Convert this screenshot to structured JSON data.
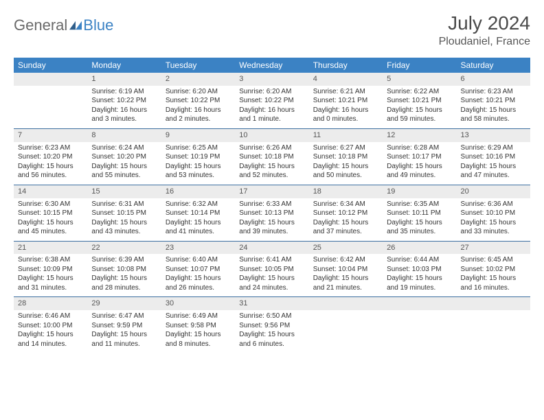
{
  "brand": {
    "part1": "General",
    "part2": "Blue"
  },
  "title": {
    "month_year": "July 2024",
    "location": "Ploudaniel, France"
  },
  "colors": {
    "header_bg": "#3b82c4",
    "header_fg": "#ffffff",
    "daynum_bg": "#ececec",
    "daynum_fg": "#555555",
    "cell_fg": "#333333",
    "divider": "#3b6ea0",
    "logo_gray": "#6a6a6a",
    "logo_blue": "#3b82c4",
    "page_bg": "#ffffff"
  },
  "typography": {
    "month_year_size": 28,
    "location_size": 16,
    "weekday_size": 12,
    "daynum_size": 11,
    "cell_size": 10,
    "logo_size": 22
  },
  "weekdays": [
    "Sunday",
    "Monday",
    "Tuesday",
    "Wednesday",
    "Thursday",
    "Friday",
    "Saturday"
  ],
  "blank_before": 1,
  "days": [
    {
      "n": "1",
      "sunrise": "6:19 AM",
      "sunset": "10:22 PM",
      "dl1": "Daylight: 16 hours",
      "dl2": "and 3 minutes."
    },
    {
      "n": "2",
      "sunrise": "6:20 AM",
      "sunset": "10:22 PM",
      "dl1": "Daylight: 16 hours",
      "dl2": "and 2 minutes."
    },
    {
      "n": "3",
      "sunrise": "6:20 AM",
      "sunset": "10:22 PM",
      "dl1": "Daylight: 16 hours",
      "dl2": "and 1 minute."
    },
    {
      "n": "4",
      "sunrise": "6:21 AM",
      "sunset": "10:21 PM",
      "dl1": "Daylight: 16 hours",
      "dl2": "and 0 minutes."
    },
    {
      "n": "5",
      "sunrise": "6:22 AM",
      "sunset": "10:21 PM",
      "dl1": "Daylight: 15 hours",
      "dl2": "and 59 minutes."
    },
    {
      "n": "6",
      "sunrise": "6:23 AM",
      "sunset": "10:21 PM",
      "dl1": "Daylight: 15 hours",
      "dl2": "and 58 minutes."
    },
    {
      "n": "7",
      "sunrise": "6:23 AM",
      "sunset": "10:20 PM",
      "dl1": "Daylight: 15 hours",
      "dl2": "and 56 minutes."
    },
    {
      "n": "8",
      "sunrise": "6:24 AM",
      "sunset": "10:20 PM",
      "dl1": "Daylight: 15 hours",
      "dl2": "and 55 minutes."
    },
    {
      "n": "9",
      "sunrise": "6:25 AM",
      "sunset": "10:19 PM",
      "dl1": "Daylight: 15 hours",
      "dl2": "and 53 minutes."
    },
    {
      "n": "10",
      "sunrise": "6:26 AM",
      "sunset": "10:18 PM",
      "dl1": "Daylight: 15 hours",
      "dl2": "and 52 minutes."
    },
    {
      "n": "11",
      "sunrise": "6:27 AM",
      "sunset": "10:18 PM",
      "dl1": "Daylight: 15 hours",
      "dl2": "and 50 minutes."
    },
    {
      "n": "12",
      "sunrise": "6:28 AM",
      "sunset": "10:17 PM",
      "dl1": "Daylight: 15 hours",
      "dl2": "and 49 minutes."
    },
    {
      "n": "13",
      "sunrise": "6:29 AM",
      "sunset": "10:16 PM",
      "dl1": "Daylight: 15 hours",
      "dl2": "and 47 minutes."
    },
    {
      "n": "14",
      "sunrise": "6:30 AM",
      "sunset": "10:15 PM",
      "dl1": "Daylight: 15 hours",
      "dl2": "and 45 minutes."
    },
    {
      "n": "15",
      "sunrise": "6:31 AM",
      "sunset": "10:15 PM",
      "dl1": "Daylight: 15 hours",
      "dl2": "and 43 minutes."
    },
    {
      "n": "16",
      "sunrise": "6:32 AM",
      "sunset": "10:14 PM",
      "dl1": "Daylight: 15 hours",
      "dl2": "and 41 minutes."
    },
    {
      "n": "17",
      "sunrise": "6:33 AM",
      "sunset": "10:13 PM",
      "dl1": "Daylight: 15 hours",
      "dl2": "and 39 minutes."
    },
    {
      "n": "18",
      "sunrise": "6:34 AM",
      "sunset": "10:12 PM",
      "dl1": "Daylight: 15 hours",
      "dl2": "and 37 minutes."
    },
    {
      "n": "19",
      "sunrise": "6:35 AM",
      "sunset": "10:11 PM",
      "dl1": "Daylight: 15 hours",
      "dl2": "and 35 minutes."
    },
    {
      "n": "20",
      "sunrise": "6:36 AM",
      "sunset": "10:10 PM",
      "dl1": "Daylight: 15 hours",
      "dl2": "and 33 minutes."
    },
    {
      "n": "21",
      "sunrise": "6:38 AM",
      "sunset": "10:09 PM",
      "dl1": "Daylight: 15 hours",
      "dl2": "and 31 minutes."
    },
    {
      "n": "22",
      "sunrise": "6:39 AM",
      "sunset": "10:08 PM",
      "dl1": "Daylight: 15 hours",
      "dl2": "and 28 minutes."
    },
    {
      "n": "23",
      "sunrise": "6:40 AM",
      "sunset": "10:07 PM",
      "dl1": "Daylight: 15 hours",
      "dl2": "and 26 minutes."
    },
    {
      "n": "24",
      "sunrise": "6:41 AM",
      "sunset": "10:05 PM",
      "dl1": "Daylight: 15 hours",
      "dl2": "and 24 minutes."
    },
    {
      "n": "25",
      "sunrise": "6:42 AM",
      "sunset": "10:04 PM",
      "dl1": "Daylight: 15 hours",
      "dl2": "and 21 minutes."
    },
    {
      "n": "26",
      "sunrise": "6:44 AM",
      "sunset": "10:03 PM",
      "dl1": "Daylight: 15 hours",
      "dl2": "and 19 minutes."
    },
    {
      "n": "27",
      "sunrise": "6:45 AM",
      "sunset": "10:02 PM",
      "dl1": "Daylight: 15 hours",
      "dl2": "and 16 minutes."
    },
    {
      "n": "28",
      "sunrise": "6:46 AM",
      "sunset": "10:00 PM",
      "dl1": "Daylight: 15 hours",
      "dl2": "and 14 minutes."
    },
    {
      "n": "29",
      "sunrise": "6:47 AM",
      "sunset": "9:59 PM",
      "dl1": "Daylight: 15 hours",
      "dl2": "and 11 minutes."
    },
    {
      "n": "30",
      "sunrise": "6:49 AM",
      "sunset": "9:58 PM",
      "dl1": "Daylight: 15 hours",
      "dl2": "and 8 minutes."
    },
    {
      "n": "31",
      "sunrise": "6:50 AM",
      "sunset": "9:56 PM",
      "dl1": "Daylight: 15 hours",
      "dl2": "and 6 minutes."
    }
  ]
}
